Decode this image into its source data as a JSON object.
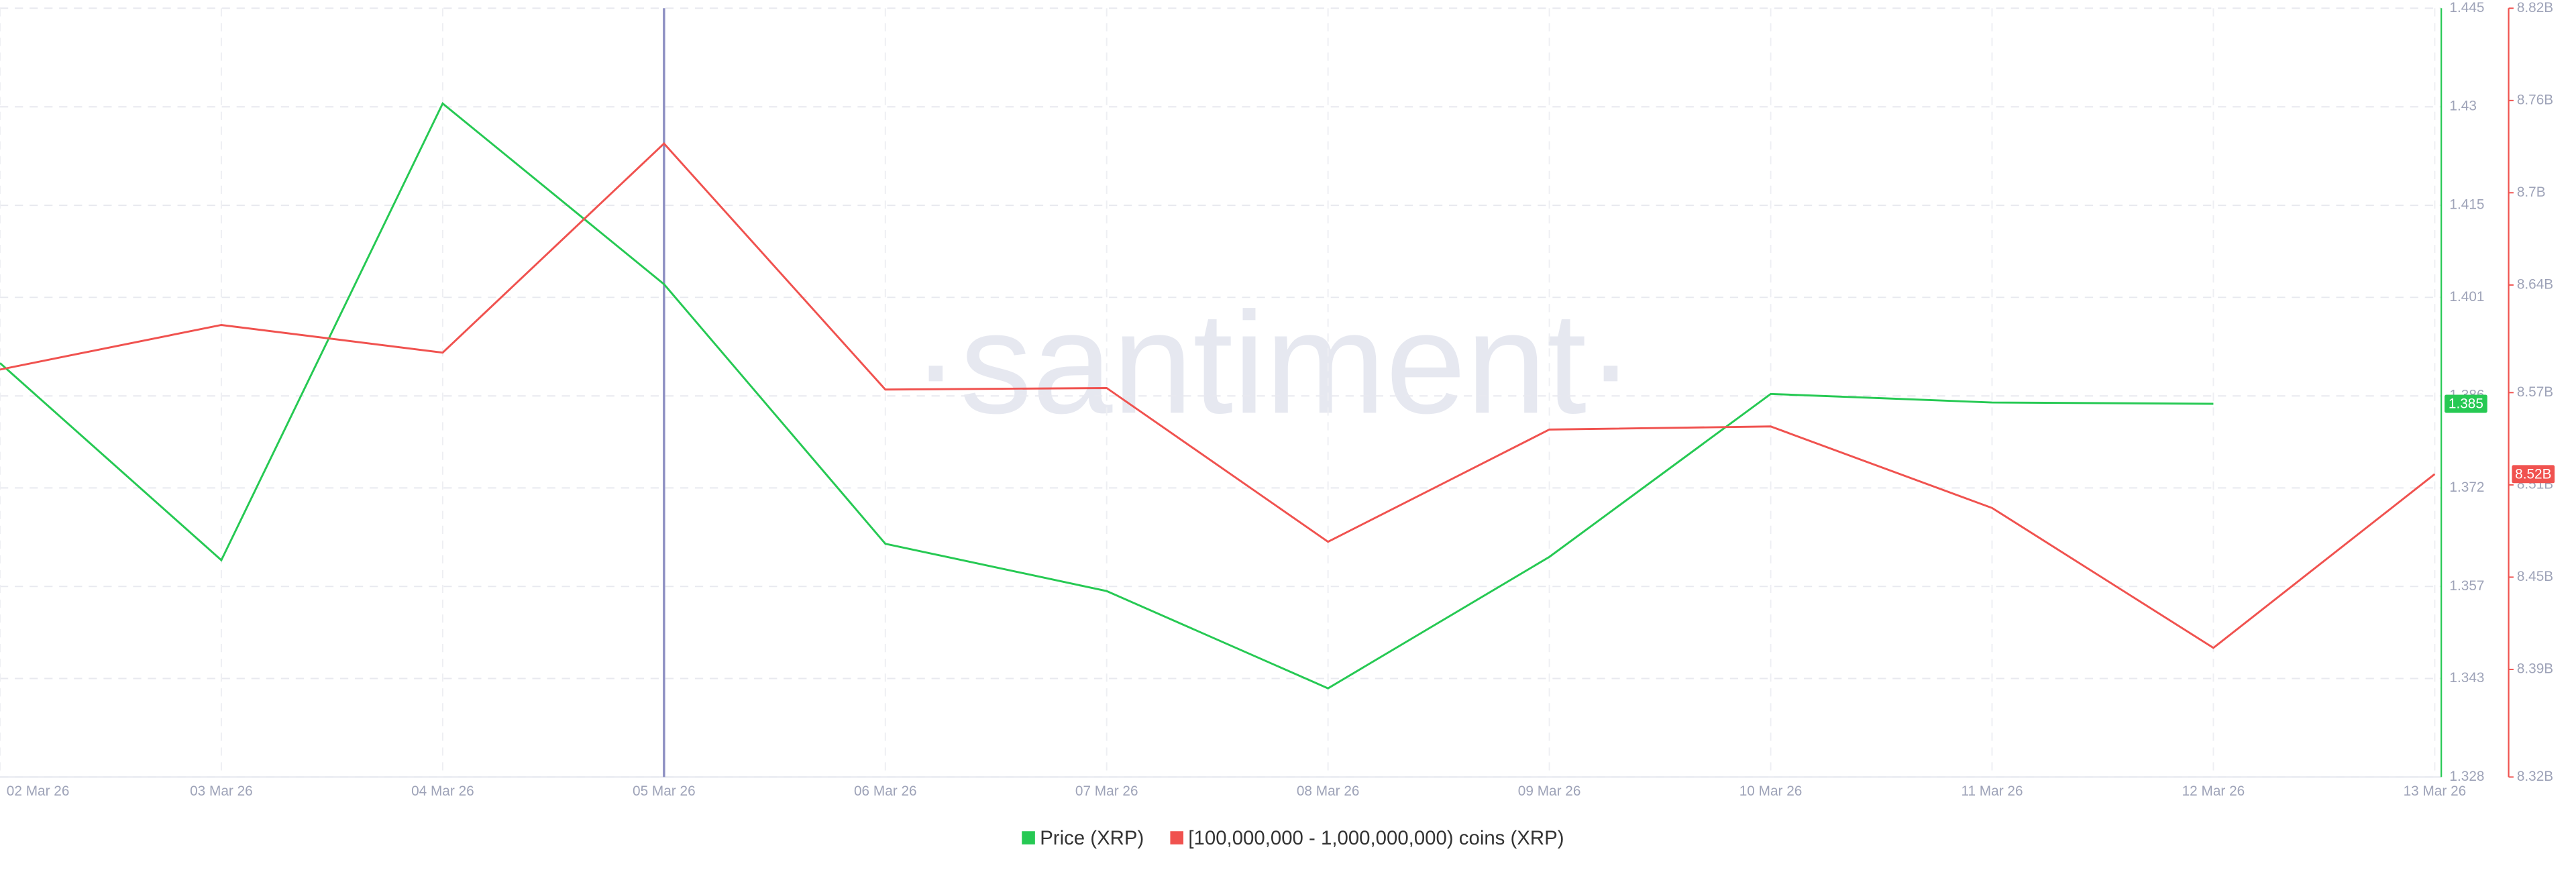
{
  "chart_data": {
    "type": "line",
    "watermark": "·santiment·",
    "categories": [
      "02 Mar 26",
      "03 Mar 26",
      "04 Mar 26",
      "05 Mar 26",
      "06 Mar 26",
      "07 Mar 26",
      "08 Mar 26",
      "09 Mar 26",
      "10 Mar 26",
      "11 Mar 26",
      "12 Mar 26",
      "13 Mar 26"
    ],
    "series": [
      {
        "name": "Price (XRP)",
        "color": "#26c953",
        "axis": "y",
        "values": [
          1.391,
          1.361,
          1.4305,
          1.403,
          1.3635,
          1.3563,
          1.3415,
          1.3615,
          1.3863,
          1.385,
          1.3848,
          null
        ],
        "value_labels": [
          null,
          null,
          null,
          null,
          null,
          null,
          null,
          null,
          null,
          null,
          "1.385",
          null
        ]
      },
      {
        "name": "[100,000,000 - 1,000,000,000) coins (XRP)",
        "color": "#f0524f",
        "axis": "y2",
        "values": [
          8585000000,
          8614000000,
          8596000000,
          8732000000,
          8572000000,
          8573000000,
          8473000000,
          8546000000,
          8548000000,
          8495000000,
          8404000000,
          8517000000
        ],
        "value_labels": [
          null,
          null,
          null,
          null,
          null,
          null,
          null,
          null,
          null,
          null,
          null,
          "8.52B"
        ]
      }
    ],
    "ylim": [
      1.328,
      1.445
    ],
    "yticks": [
      1.328,
      1.343,
      1.357,
      1.372,
      1.386,
      1.401,
      1.415,
      1.43,
      1.445
    ],
    "y2lim": [
      8320000000,
      8820000000
    ],
    "y2ticks": [
      {
        "value": 8320000000,
        "label": "8.32B"
      },
      {
        "value": 8390000000,
        "label": "8.39B"
      },
      {
        "value": 8450000000,
        "label": "8.45B"
      },
      {
        "value": 8510000000,
        "label": "8.51B"
      },
      {
        "value": 8570000000,
        "label": "8.57B"
      },
      {
        "value": 8640000000,
        "label": "8.64B"
      },
      {
        "value": 8700000000,
        "label": "8.7B"
      },
      {
        "value": 8760000000,
        "label": "8.76B"
      },
      {
        "value": 8820000000,
        "label": "8.82B"
      }
    ],
    "grid": true,
    "cursor_category": 3,
    "legend": "bottom"
  }
}
